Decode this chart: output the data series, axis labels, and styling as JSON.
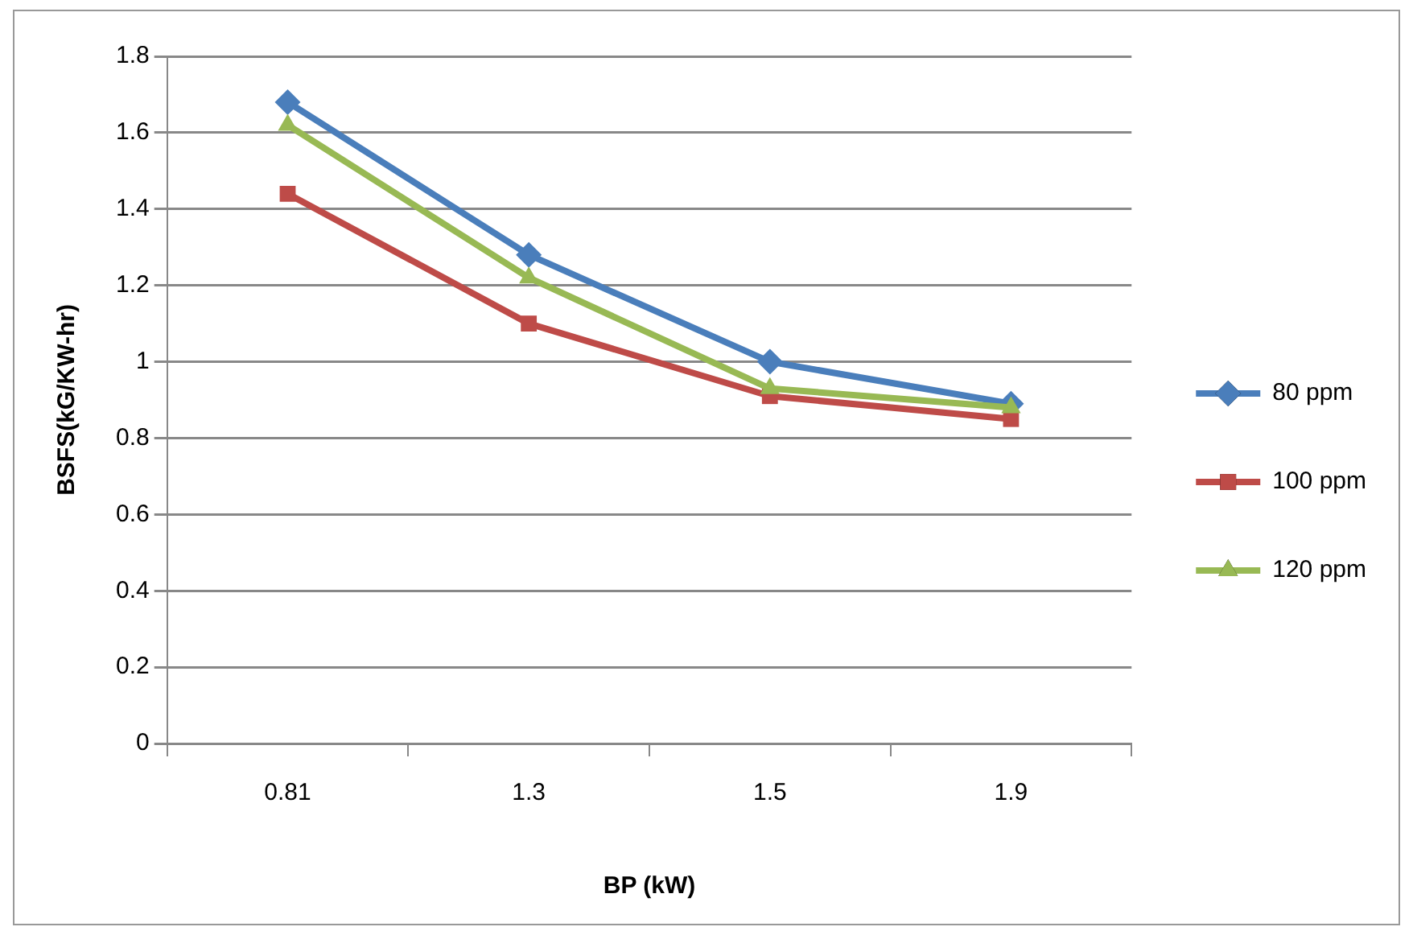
{
  "chart_data": {
    "type": "line",
    "xlabel": "BP (kW)",
    "ylabel": "BSFS(kG/KW-hr)",
    "categories": [
      "0.81",
      "1.3",
      "1.5",
      "1.9"
    ],
    "series": [
      {
        "name": "80 ppm",
        "color": "#4a7ebb",
        "marker": "diamond",
        "values": [
          1.68,
          1.28,
          1.0,
          0.89
        ]
      },
      {
        "name": "100 ppm",
        "color": "#be4b48",
        "marker": "square",
        "values": [
          1.44,
          1.1,
          0.91,
          0.85
        ]
      },
      {
        "name": "120 ppm",
        "color": "#98b954",
        "marker": "triangle",
        "values": [
          1.62,
          1.22,
          0.93,
          0.88
        ]
      }
    ],
    "ylim": [
      0,
      1.8
    ],
    "yticks": [
      0,
      0.2,
      0.4,
      0.6,
      0.8,
      1,
      1.2,
      1.4,
      1.6,
      1.8
    ],
    "grid": "y",
    "legend": "right"
  }
}
